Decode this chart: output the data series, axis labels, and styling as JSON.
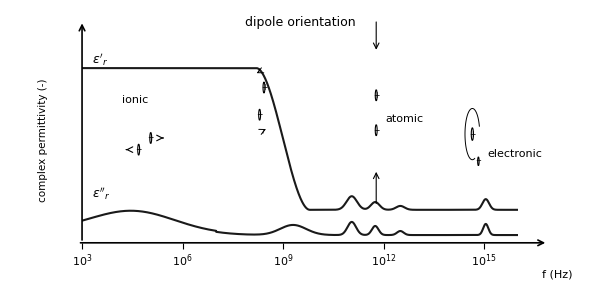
{
  "title": "dipole orientation",
  "xlabel": "f (Hz)",
  "ylabel": "complex permittivity (-)",
  "xlim_log": [
    3,
    16
  ],
  "background_color": "#ffffff",
  "text_color": "#000000",
  "line_color": "#1a1a1a",
  "xtick_positions": [
    3,
    6,
    9,
    12,
    15
  ],
  "xtick_labels": [
    "$10^3$",
    "$10^6$",
    "$10^9$",
    "$10^{12}$",
    "$10^{15}$"
  ]
}
